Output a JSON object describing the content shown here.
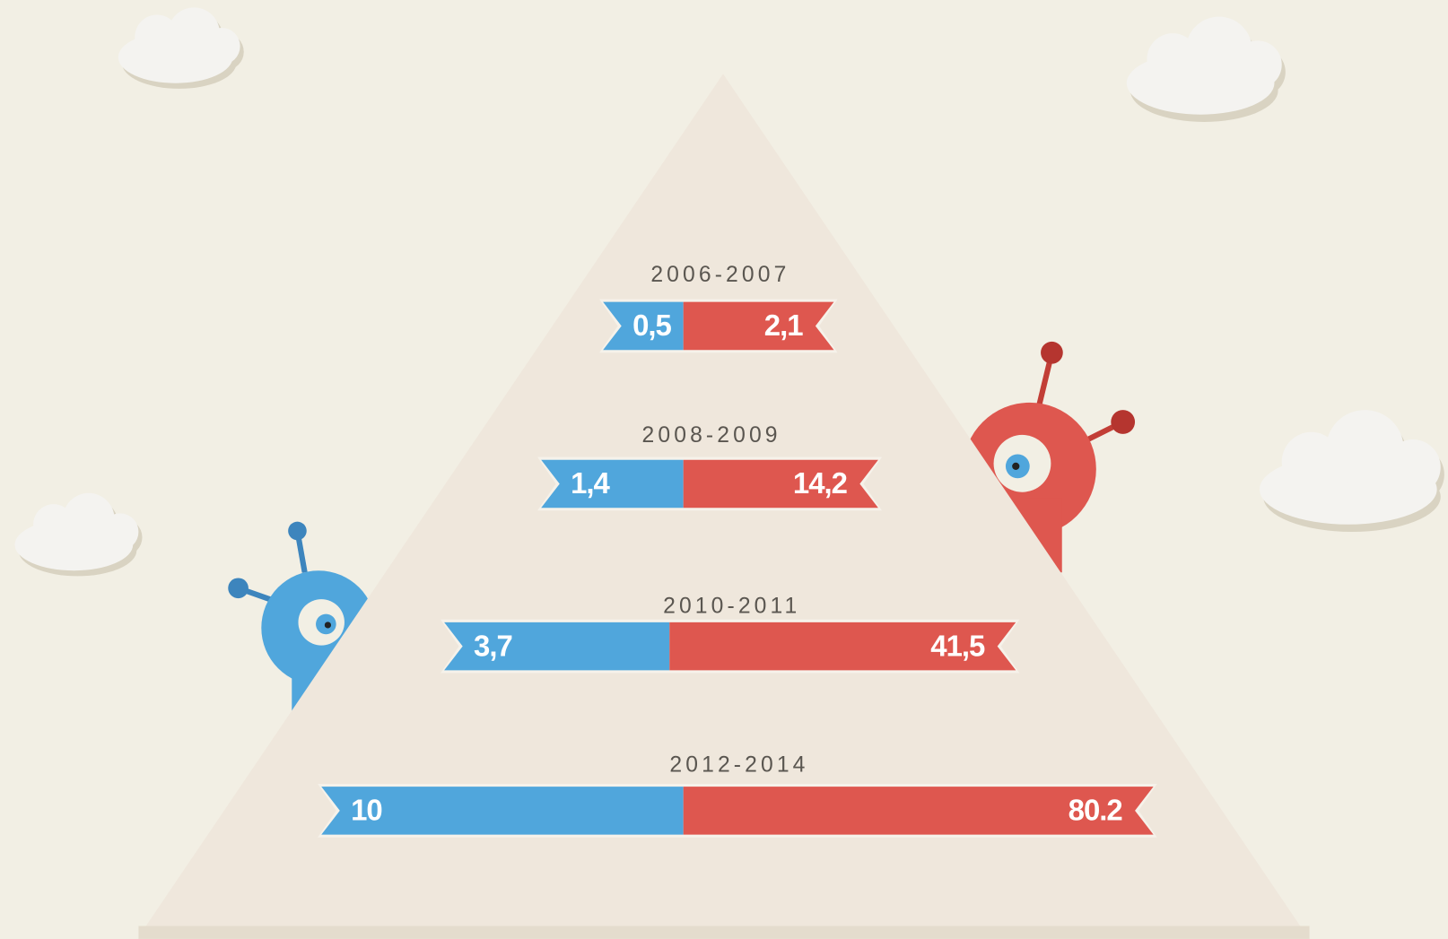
{
  "rows": [
    {
      "period": "2006-2007",
      "left": "0,5",
      "right": "2,1"
    },
    {
      "period": "2008-2009",
      "left": "1,4",
      "right": "14,2"
    },
    {
      "period": "2010-2011",
      "left": "3,7",
      "right": "41,5"
    },
    {
      "period": "2012-2014",
      "left": "10",
      "right": "80.2"
    }
  ]
}
